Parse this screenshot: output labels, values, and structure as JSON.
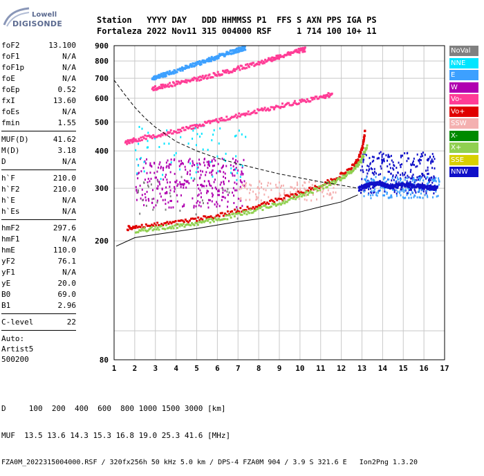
{
  "logo": {
    "line1": "Lowell",
    "line2": "DIGISONDE"
  },
  "header": {
    "line1": "Station   YYYY DAY   DDD HHMMSS P1  FFS S AXN PPS IGA PS",
    "line2": "Fortaleza 2022 Nov11 315 004000 RSF     1 714 100 10+ 11"
  },
  "params": {
    "group1": [
      {
        "name": "foF2",
        "value": "13.100"
      },
      {
        "name": "foF1",
        "value": "N/A"
      },
      {
        "name": "foF1p",
        "value": "N/A"
      },
      {
        "name": "foE",
        "value": "N/A"
      },
      {
        "name": "foEp",
        "value": "0.52"
      },
      {
        "name": "fxI",
        "value": "13.60"
      },
      {
        "name": "foEs",
        "value": "N/A"
      },
      {
        "name": "fmin",
        "value": "1.55"
      }
    ],
    "group2": [
      {
        "name": "MUF(D)",
        "value": "41.62"
      },
      {
        "name": "M(D)",
        "value": "3.18"
      },
      {
        "name": "D",
        "value": "N/A"
      }
    ],
    "group3": [
      {
        "name": "h`F",
        "value": "210.0"
      },
      {
        "name": "h`F2",
        "value": "210.0"
      },
      {
        "name": "h`E",
        "value": "N/A"
      },
      {
        "name": "h`Es",
        "value": "N/A"
      }
    ],
    "group4": [
      {
        "name": "hmF2",
        "value": "297.6"
      },
      {
        "name": "hmF1",
        "value": "N/A"
      },
      {
        "name": "hmE",
        "value": "110.0"
      },
      {
        "name": "yF2",
        "value": "76.1"
      },
      {
        "name": "yF1",
        "value": "N/A"
      },
      {
        "name": "yE",
        "value": "20.0"
      },
      {
        "name": "B0",
        "value": "69.0"
      },
      {
        "name": "B1",
        "value": "2.96"
      }
    ],
    "group5": [
      {
        "name": "C-level",
        "value": "22"
      }
    ],
    "auto_label": "Auto:",
    "artist": "Artist5",
    "version": "500200"
  },
  "footer": {
    "line1": "D     100  200  400  600  800 1000 1500 3000 [km]",
    "line2": "MUF  13.5 13.6 14.3 15.3 16.8 19.0 25.3 41.6 [MHz]",
    "line3": "FZA0M_2022315004000.RSF / 320fx256h 50 kHz 5.0 km / DPS-4 FZA0M 904 / 3.9 S 321.6 E   Ion2Png 1.3.20"
  },
  "legend": [
    {
      "label": "NoVal",
      "color": "#808080"
    },
    {
      "label": "NNE",
      "color": "#00e5ff"
    },
    {
      "label": "E",
      "color": "#3da0ff"
    },
    {
      "label": "W",
      "color": "#b000b0"
    },
    {
      "label": "Vo-",
      "color": "#ff3c96"
    },
    {
      "label": "Vo+",
      "color": "#e00000"
    },
    {
      "label": "SSW",
      "color": "#f4b0b0"
    },
    {
      "label": "X-",
      "color": "#008a00"
    },
    {
      "label": "X+",
      "color": "#90d050"
    },
    {
      "label": "SSE",
      "color": "#d8d000"
    },
    {
      "label": "NNW",
      "color": "#1010c8"
    }
  ],
  "chart_data": {
    "type": "scatter",
    "xlim": [
      1,
      17
    ],
    "ylim": [
      80,
      900
    ],
    "y_scale": "log",
    "grid": true,
    "x_ticks": [
      "1",
      "2",
      "3",
      "4",
      "5",
      "6",
      "7",
      "8",
      "9",
      "10",
      "11",
      "12",
      "13",
      "14",
      "15",
      "16",
      "17"
    ],
    "y_ticks": [
      {
        "value": 80,
        "label": "80"
      },
      {
        "value": 200,
        "label": "200"
      },
      {
        "value": 300,
        "label": "300"
      },
      {
        "value": 400,
        "label": "400"
      },
      {
        "value": 500,
        "label": "500"
      },
      {
        "value": 600,
        "label": "600"
      },
      {
        "value": 700,
        "label": "700"
      },
      {
        "value": 800,
        "label": "800"
      },
      {
        "value": 900,
        "label": "900"
      }
    ],
    "series": [
      {
        "name": "Vo+",
        "kind": "trace",
        "color": "#e00000",
        "x": [
          1.6,
          2,
          3,
          4,
          5,
          6,
          7,
          8,
          9,
          10,
          11,
          11.8,
          12.4,
          12.8,
          13.0,
          13.1
        ],
        "y": [
          222,
          225,
          228,
          232,
          238,
          245,
          255,
          265,
          278,
          292,
          310,
          330,
          350,
          380,
          420,
          470
        ]
      },
      {
        "name": "X+",
        "kind": "trace",
        "color": "#90d050",
        "x": [
          2,
          3,
          4,
          5,
          6,
          7,
          8,
          9,
          10,
          11,
          11.8,
          12.4,
          12.9,
          13.2
        ],
        "y": [
          218,
          222,
          226,
          231,
          238,
          247,
          258,
          270,
          286,
          304,
          322,
          342,
          372,
          420
        ]
      },
      {
        "name": "Vo-",
        "kind": "trace",
        "color": "#ff3c96",
        "x": [
          1.5,
          2,
          3,
          4,
          5,
          6,
          7,
          8,
          9,
          10,
          11,
          11.5
        ],
        "y": [
          430,
          440,
          455,
          470,
          490,
          510,
          530,
          550,
          570,
          590,
          610,
          625
        ]
      },
      {
        "name": "Vo-",
        "kind": "trace",
        "color": "#ff3c96",
        "x": [
          2.8,
          3.5,
          4.5,
          5.5,
          6.5,
          7.5,
          8.5,
          9,
          9.8,
          10.2
        ],
        "y": [
          650,
          668,
          690,
          715,
          745,
          780,
          815,
          835,
          870,
          880
        ]
      },
      {
        "name": "E",
        "kind": "trace",
        "color": "#3da0ff",
        "x": [
          2.8,
          3.5,
          4.5,
          5.5,
          6,
          6.8,
          7.3
        ],
        "y": [
          700,
          730,
          770,
          810,
          835,
          870,
          890
        ]
      },
      {
        "name": "NNW",
        "kind": "trace",
        "color": "#1010c8",
        "x": [
          12.8,
          13.2,
          13.8,
          14.3,
          15,
          15.6,
          16.0,
          16.6
        ],
        "y": [
          300,
          310,
          315,
          305,
          310,
          308,
          305,
          302
        ]
      }
    ],
    "scatter_clusters": [
      {
        "name": "W",
        "color": "#b000b0",
        "x": [
          2.0,
          7.3
        ],
        "y": [
          260,
          380
        ],
        "count": 320
      },
      {
        "name": "NNE",
        "color": "#00e5ff",
        "x": [
          2.0,
          7.5
        ],
        "y": [
          320,
          500
        ],
        "count": 70
      },
      {
        "name": "SSW",
        "color": "#f4b0b0",
        "x": [
          7.0,
          11.8
        ],
        "y": [
          275,
          320
        ],
        "count": 120
      },
      {
        "name": "NNW",
        "color": "#1010c8",
        "x": [
          12.9,
          16.5
        ],
        "y": [
          290,
          400
        ],
        "count": 260
      },
      {
        "name": "E",
        "color": "#3da0ff",
        "x": [
          13.0,
          16.8
        ],
        "y": [
          280,
          330
        ],
        "count": 180
      },
      {
        "name": "NoVal",
        "color": "#808080",
        "x": [
          2.0,
          7.0
        ],
        "y": [
          230,
          330
        ],
        "count": 30
      }
    ],
    "profile_curve": {
      "x": [
        1.1,
        2,
        3,
        4,
        5,
        6,
        7,
        8,
        9,
        10,
        11,
        12,
        12.8
      ],
      "y": [
        192,
        205,
        210,
        215,
        220,
        226,
        232,
        237,
        243,
        250,
        260,
        270,
        285
      ]
    },
    "muf_curve": {
      "x": [
        1.0,
        1.5,
        2,
        2.5,
        3,
        4,
        5,
        6,
        7,
        8,
        9,
        10,
        11,
        12,
        12.8
      ],
      "y": [
        690,
        620,
        560,
        515,
        480,
        430,
        400,
        378,
        362,
        348,
        335,
        325,
        315,
        307,
        300
      ]
    }
  }
}
